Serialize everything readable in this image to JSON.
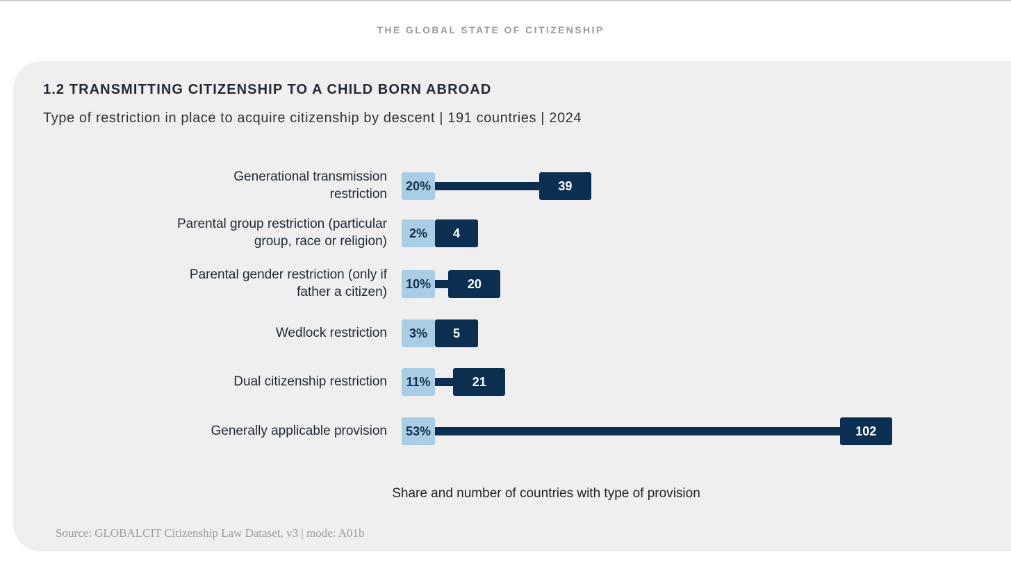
{
  "header": {
    "title": "THE GLOBAL STATE OF CITIZENSHIP"
  },
  "card": {
    "title": "1.2 TRANSMITTING CITIZENSHIP TO A CHILD BORN ABROAD",
    "subtitle": "Type of restriction in place to acquire citizenship by descent | 191 countries | 2024",
    "source": "Source: GLOBALCIT Citizenship Law Dataset, v3 | mode: A01b"
  },
  "colors": {
    "share_box": "#aacde6",
    "count_box": "#0b2f50",
    "card_bg": "#efefef"
  },
  "chart_data": {
    "type": "bar",
    "orientation": "horizontal",
    "title": "1.2 TRANSMITTING CITIZENSHIP TO A CHILD BORN ABROAD",
    "subtitle": "Type of restriction in place to acquire citizenship by descent | 191 countries | 2024",
    "xlabel": "Share and number of countries with type of provision",
    "ylabel": "",
    "total_countries": 191,
    "categories": [
      "Generational transmission restriction",
      "Parental group restriction (particular group, race or religion)",
      "Parental gender restriction (only if father a citizen)",
      "Wedlock restriction",
      "Dual citizenship restriction",
      "Generally applicable provision"
    ],
    "label_lines": [
      [
        "Generational transmission",
        "restriction"
      ],
      [
        "Parental group restriction (particular",
        "group, race or religion)"
      ],
      [
        "Parental gender restriction (only if",
        "father a citizen)"
      ],
      [
        "Wedlock restriction"
      ],
      [
        "Dual citizenship restriction"
      ],
      [
        "Generally applicable provision"
      ]
    ],
    "series": [
      {
        "name": "Share",
        "values": [
          20,
          2,
          10,
          3,
          11,
          53
        ],
        "labels": [
          "20%",
          "2%",
          "10%",
          "3%",
          "11%",
          "53%"
        ]
      },
      {
        "name": "Number of countries",
        "values": [
          39,
          4,
          20,
          5,
          21,
          102
        ],
        "labels": [
          "39",
          "4",
          "20",
          "5",
          "21",
          "102"
        ]
      }
    ],
    "grid": false,
    "legend": "none"
  }
}
